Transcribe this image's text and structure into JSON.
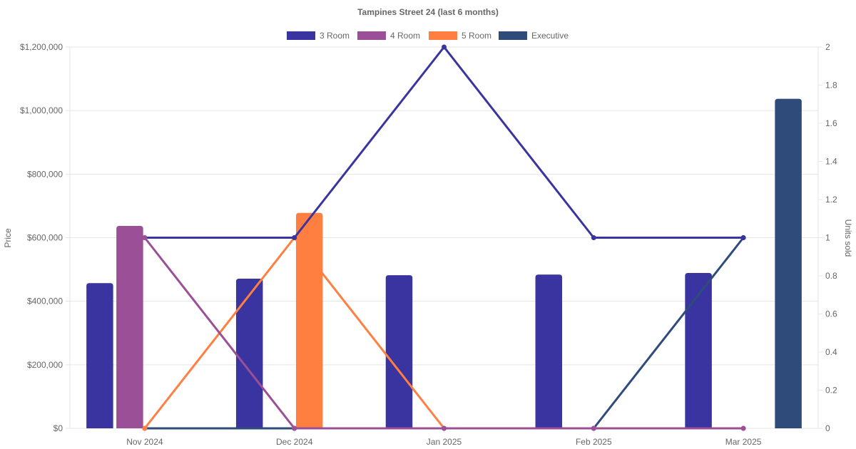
{
  "chart_data": {
    "type": "bar",
    "title": "Tampines Street 24 (last 6 months)",
    "categories": [
      "Nov 2024",
      "Dec 2024",
      "Jan 2025",
      "Feb 2025",
      "Mar 2025"
    ],
    "y_left": {
      "label": "Price",
      "ylim": [
        0,
        1200000
      ],
      "ticks": [
        "$0",
        "$200,000",
        "$400,000",
        "$600,000",
        "$800,000",
        "$1,000,000",
        "$1,200,000"
      ]
    },
    "y_right": {
      "label": "Units sold",
      "ylim": [
        0,
        2
      ],
      "ticks": [
        "0",
        "0.2",
        "0.4",
        "0.6",
        "0.8",
        "1",
        "1.2",
        "1.4",
        "1.6",
        "1.8",
        "2"
      ]
    },
    "grid": true,
    "legend_position": "top",
    "series": [
      {
        "name": "3 Room",
        "color": "#3a34a0",
        "price": [
          457000,
          471000,
          482000,
          484000,
          489000
        ],
        "units": [
          1,
          1,
          2,
          1,
          1
        ]
      },
      {
        "name": "4 Room",
        "color": "#9b4f96",
        "price": [
          637000,
          null,
          null,
          null,
          null
        ],
        "units": [
          1,
          0,
          0,
          0,
          0
        ]
      },
      {
        "name": "5 Room",
        "color": "#ff7f41",
        "price": [
          null,
          678000,
          null,
          null,
          null
        ],
        "units": [
          0,
          1,
          0,
          0,
          0
        ]
      },
      {
        "name": "Executive",
        "color": "#2e4b7a",
        "price": [
          null,
          null,
          null,
          null,
          1037000
        ],
        "units": [
          0,
          0,
          0,
          0,
          1
        ]
      }
    ]
  }
}
